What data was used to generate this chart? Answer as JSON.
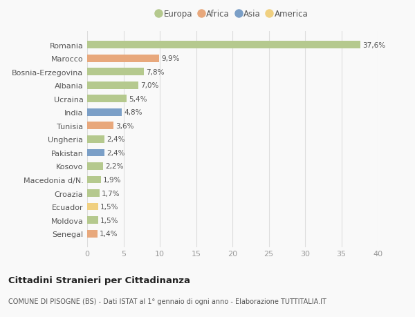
{
  "categories": [
    "Romania",
    "Marocco",
    "Bosnia-Erzegovina",
    "Albania",
    "Ucraina",
    "India",
    "Tunisia",
    "Ungheria",
    "Pakistan",
    "Kosovo",
    "Macedonia d/N.",
    "Croazia",
    "Ecuador",
    "Moldova",
    "Senegal"
  ],
  "values": [
    37.6,
    9.9,
    7.8,
    7.0,
    5.4,
    4.8,
    3.6,
    2.4,
    2.4,
    2.2,
    1.9,
    1.7,
    1.5,
    1.5,
    1.4
  ],
  "labels": [
    "37,6%",
    "9,9%",
    "7,8%",
    "7,0%",
    "5,4%",
    "4,8%",
    "3,6%",
    "2,4%",
    "2,4%",
    "2,2%",
    "1,9%",
    "1,7%",
    "1,5%",
    "1,5%",
    "1,4%"
  ],
  "bar_colors": [
    "#b5c98e",
    "#e8a87c",
    "#b5c98e",
    "#b5c98e",
    "#b5c98e",
    "#7b9fc7",
    "#e8a87c",
    "#b5c98e",
    "#7b9fc7",
    "#b5c98e",
    "#b5c98e",
    "#b5c98e",
    "#f0d080",
    "#b5c98e",
    "#e8a87c"
  ],
  "legend": [
    {
      "label": "Europa",
      "color": "#b5c98e"
    },
    {
      "label": "Africa",
      "color": "#e8a87c"
    },
    {
      "label": "Asia",
      "color": "#7b9fc7"
    },
    {
      "label": "America",
      "color": "#f0d080"
    }
  ],
  "xlim": [
    0,
    40
  ],
  "xticks": [
    0,
    5,
    10,
    15,
    20,
    25,
    30,
    35,
    40
  ],
  "title": "Cittadini Stranieri per Cittadinanza",
  "subtitle": "COMUNE DI PISOGNE (BS) - Dati ISTAT al 1° gennaio di ogni anno - Elaborazione TUTTITALIA.IT",
  "background_color": "#f9f9f9",
  "grid_color": "#dddddd",
  "text_color": "#555555"
}
